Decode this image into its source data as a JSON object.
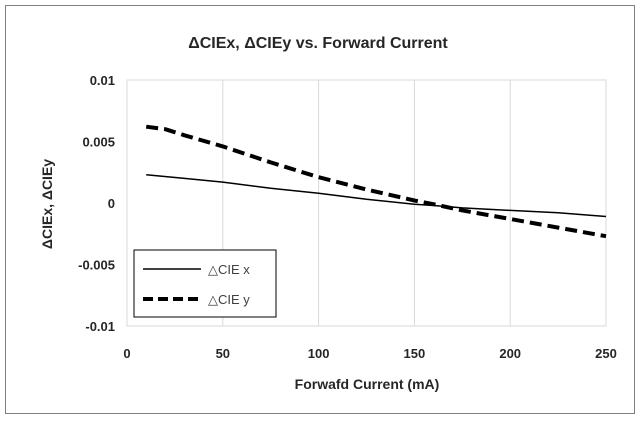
{
  "chart_data": {
    "type": "line",
    "title": "ΔCIEx, ΔCIEy vs. Forward Current",
    "xlabel": "Forwafd Current (mA)",
    "ylabel": "ΔCIEx, ΔCIEy",
    "xlim": [
      0,
      250
    ],
    "ylim": [
      -0.01,
      0.01
    ],
    "x_ticks": [
      0,
      50,
      100,
      150,
      200,
      250
    ],
    "x_tick_labels": [
      "0",
      "50",
      "100",
      "150",
      "200",
      "250"
    ],
    "y_ticks": [
      0.01,
      0.005,
      0,
      -0.005,
      -0.01
    ],
    "y_tick_labels": [
      "0.01",
      "0.005",
      "0",
      "-0.005",
      "-0.01"
    ],
    "grid": "vertical",
    "legend_position": "bottom-left",
    "series": [
      {
        "name": "△CIE x",
        "style": "solid",
        "color": "#000000",
        "x": [
          10,
          30,
          50,
          75,
          100,
          125,
          150,
          160,
          175,
          200,
          225,
          250
        ],
        "y": [
          0.0023,
          0.002,
          0.0017,
          0.0012,
          0.0008,
          0.0003,
          -0.0001,
          -0.0002,
          -0.0004,
          -0.0006,
          -0.0008,
          -0.0011
        ]
      },
      {
        "name": "△CIE y",
        "style": "dashed",
        "color": "#000000",
        "x": [
          10,
          20,
          30,
          50,
          75,
          100,
          125,
          150,
          160,
          175,
          200,
          225,
          250
        ],
        "y": [
          0.0062,
          0.006,
          0.0055,
          0.0046,
          0.0033,
          0.0021,
          0.0011,
          0.0002,
          -0.0001,
          -0.0006,
          -0.0013,
          -0.002,
          -0.0027
        ]
      }
    ]
  }
}
